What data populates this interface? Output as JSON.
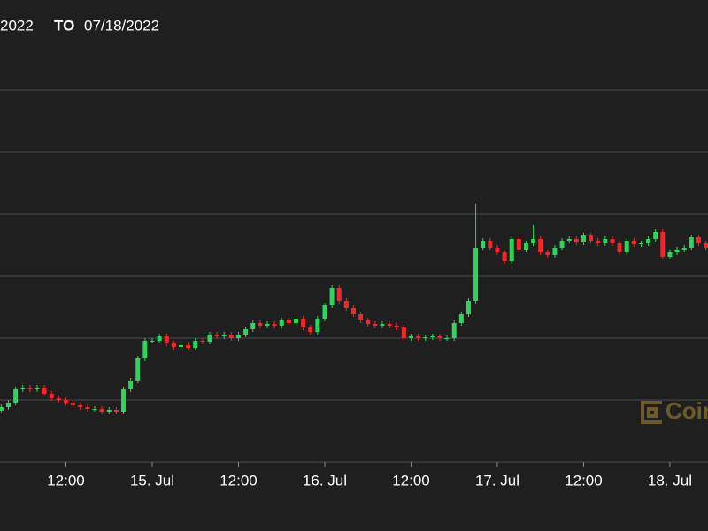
{
  "chart_data": {
    "type": "candlestick",
    "date_range": {
      "from": "2022",
      "separator": "TO",
      "to": "07/18/2022"
    },
    "watermark": "Coin",
    "up_color": "#2bd65a",
    "down_color": "#f4262a",
    "grid": true,
    "xlim": [
      2.83,
      101.3
    ],
    "xticks": [
      {
        "value": 12,
        "label": "12:00"
      },
      {
        "value": 24,
        "label": "15. Jul"
      },
      {
        "value": 36,
        "label": "12:00"
      },
      {
        "value": 48,
        "label": "16. Jul"
      },
      {
        "value": 60,
        "label": "12:00"
      },
      {
        "value": 72,
        "label": "17. Jul"
      },
      {
        "value": 84,
        "label": "12:00"
      },
      {
        "value": 96,
        "label": "18. Jul"
      }
    ],
    "ylim": [
      0,
      420
    ],
    "yticks": [
      0,
      70,
      140,
      210,
      280,
      350,
      420
    ],
    "x": [
      3,
      4,
      5,
      6,
      7,
      8,
      9,
      10,
      11,
      12,
      13,
      14,
      15,
      16,
      17,
      18,
      19,
      20,
      21,
      22,
      23,
      24,
      25,
      26,
      27,
      28,
      29,
      30,
      31,
      32,
      33,
      34,
      35,
      36,
      37,
      38,
      39,
      40,
      41,
      42,
      43,
      44,
      45,
      46,
      47,
      48,
      49,
      50,
      51,
      52,
      53,
      54,
      55,
      56,
      57,
      58,
      59,
      60,
      61,
      62,
      63,
      64,
      65,
      66,
      67,
      68,
      69,
      70,
      71,
      72,
      73,
      74,
      75,
      76,
      77,
      78,
      79,
      80,
      81,
      82,
      83,
      84,
      85,
      86,
      87,
      88,
      89,
      90,
      91,
      92,
      93,
      94,
      95,
      96,
      97,
      98,
      99,
      100,
      101
    ],
    "open": [
      58,
      62,
      67,
      82,
      84,
      82,
      84,
      77,
      72,
      70,
      67,
      64,
      62,
      60,
      60,
      57,
      59,
      57,
      82,
      92,
      117,
      137,
      137,
      142,
      134,
      130,
      132,
      129,
      137,
      136,
      144,
      142,
      144,
      140,
      144,
      150,
      157,
      154,
      156,
      154,
      160,
      157,
      162,
      152,
      147,
      162,
      177,
      197,
      182,
      174,
      167,
      160,
      156,
      154,
      156,
      154,
      152,
      140,
      142,
      140,
      141,
      142,
      140,
      140,
      157,
      167,
      182,
      242,
      250,
      242,
      237,
      227,
      252,
      240,
      247,
      252,
      237,
      234,
      242,
      250,
      252,
      248,
      256,
      250,
      247,
      252,
      247,
      237,
      250,
      246,
      247,
      252,
      260,
      232,
      237,
      240,
      242,
      254,
      247
    ],
    "high": [
      65,
      70,
      85,
      87,
      87,
      87,
      87,
      80,
      75,
      73,
      70,
      67,
      65,
      63,
      63,
      62,
      62,
      85,
      95,
      120,
      140,
      140,
      145,
      145,
      137,
      135,
      135,
      140,
      140,
      147,
      147,
      147,
      147,
      147,
      153,
      160,
      160,
      159,
      159,
      163,
      163,
      165,
      165,
      155,
      165,
      180,
      200,
      200,
      185,
      177,
      170,
      163,
      159,
      159,
      159,
      157,
      155,
      145,
      145,
      144,
      145,
      145,
      143,
      160,
      170,
      185,
      292,
      253,
      253,
      245,
      240,
      255,
      255,
      250,
      268,
      255,
      240,
      245,
      253,
      255,
      255,
      259,
      259,
      253,
      255,
      255,
      250,
      253,
      253,
      250,
      255,
      263,
      263,
      240,
      243,
      245,
      257,
      257,
      250
    ],
    "low": [
      55,
      59,
      64,
      79,
      79,
      79,
      74,
      69,
      67,
      64,
      61,
      59,
      57,
      57,
      54,
      54,
      54,
      54,
      79,
      89,
      114,
      134,
      134,
      131,
      127,
      127,
      126,
      126,
      133,
      133,
      139,
      139,
      137,
      137,
      141,
      147,
      151,
      151,
      151,
      151,
      154,
      154,
      149,
      144,
      144,
      159,
      174,
      179,
      171,
      164,
      157,
      153,
      151,
      151,
      151,
      149,
      137,
      137,
      137,
      137,
      138,
      137,
      137,
      137,
      154,
      164,
      179,
      239,
      239,
      234,
      224,
      224,
      237,
      237,
      244,
      234,
      231,
      231,
      239,
      247,
      245,
      245,
      247,
      244,
      244,
      244,
      234,
      234,
      243,
      243,
      244,
      249,
      229,
      229,
      234,
      237,
      239,
      244,
      239
    ],
    "close": [
      62,
      67,
      82,
      84,
      82,
      84,
      77,
      72,
      70,
      67,
      64,
      62,
      60,
      60,
      57,
      59,
      57,
      82,
      92,
      117,
      137,
      137,
      142,
      134,
      130,
      132,
      129,
      137,
      136,
      144,
      142,
      144,
      140,
      144,
      150,
      157,
      154,
      156,
      154,
      160,
      157,
      162,
      152,
      147,
      162,
      177,
      197,
      182,
      174,
      167,
      160,
      156,
      154,
      156,
      154,
      152,
      140,
      142,
      140,
      141,
      142,
      140,
      140,
      157,
      167,
      182,
      242,
      250,
      242,
      237,
      227,
      252,
      240,
      247,
      252,
      237,
      234,
      242,
      250,
      252,
      248,
      256,
      250,
      247,
      252,
      247,
      237,
      250,
      246,
      247,
      252,
      260,
      232,
      237,
      240,
      242,
      254,
      247,
      242
    ]
  }
}
